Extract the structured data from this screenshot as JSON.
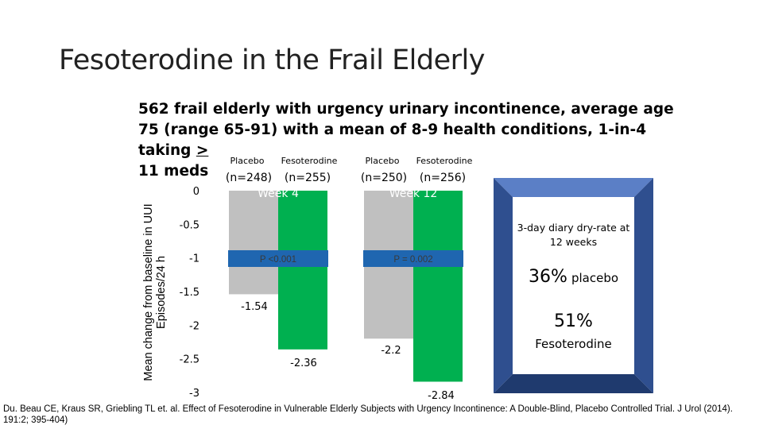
{
  "slide": {
    "title": "Fesoterodine in the Frail Elderly",
    "intro_main": "562 frail elderly with urgency urinary incontinence, average age 75 (range 65-91) with a mean of 8-9 health conditions, 1-in-4 taking ",
    "intro_underlined": ">",
    "intro_tail": "11 meds",
    "citation": "Du. Beau CE, Kraus SR, Griebling TL et. al. Effect of Fesoterodine in Vulnerable Elderly Subjects with Urgency Incontinence: A Double-Blind, Placebo Controlled Trial. J Urol (2014). 191:2; 395-404)"
  },
  "chart_data": {
    "type": "bar",
    "ylabel": "Mean change from baseline in UUI Episodes/24 h",
    "ylim": [
      -3,
      0
    ],
    "yticks": [
      0,
      -0.5,
      -1,
      -1.5,
      -2,
      -2.5,
      -3
    ],
    "ytick_labels": [
      "0",
      "-0.5",
      "-1",
      "-1.5",
      "-2",
      "-2.5",
      "-3"
    ],
    "groups": [
      {
        "name": "Week 4",
        "p_value": "P <0.001",
        "bars": [
          {
            "label": "Placebo",
            "n": "(n=248)",
            "value": -1.54,
            "value_label": "-1.54",
            "color": "#c0c0c0"
          },
          {
            "label": "Fesoterodine",
            "n": "(n=255)",
            "value": -2.36,
            "value_label": "-2.36",
            "color": "#00b050"
          }
        ]
      },
      {
        "name": "Week 12",
        "p_value": "P = 0.002",
        "bars": [
          {
            "label": "Placebo",
            "n": "(n=250)",
            "value": -2.2,
            "value_label": "-2.2",
            "color": "#c0c0c0"
          },
          {
            "label": "Fesoterodine",
            "n": "(n=256)",
            "value": -2.84,
            "value_label": "-2.84",
            "color": "#00b050"
          }
        ]
      }
    ]
  },
  "inset": {
    "note": "3-day diary dry-rate at 12 weeks",
    "placebo_pct": "36%",
    "placebo_label": "placebo",
    "feso_pct": "51%",
    "feso_label": "Fesoterodine",
    "frame_color": "#2f4f8f",
    "frame_light": "#5b7fc6",
    "frame_dark": "#1f3a6e"
  },
  "colors": {
    "pbox": "#1f66b0",
    "pbox_text": "#3a3a3a",
    "week_text": "#ffffff"
  }
}
